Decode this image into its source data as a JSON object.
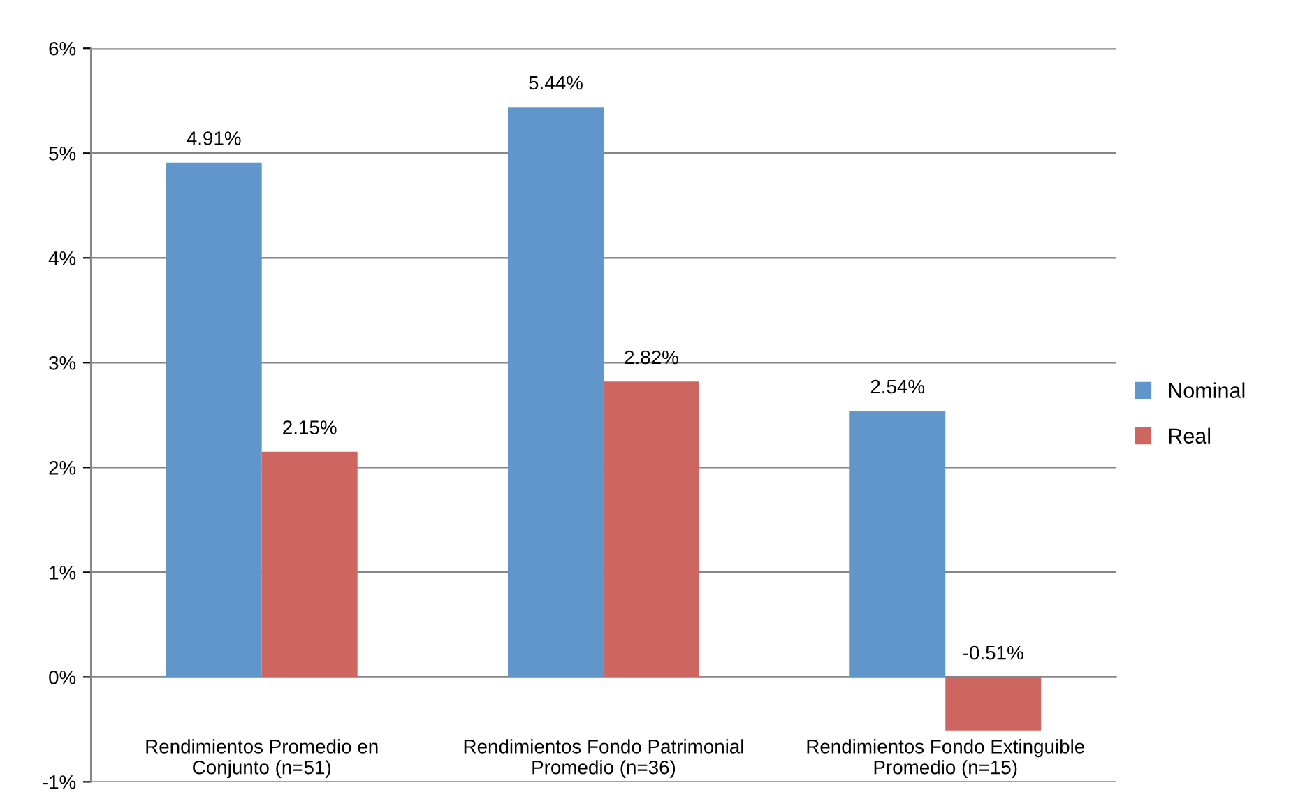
{
  "chart_data": {
    "type": "bar",
    "categories": [
      "Rendimientos Promedio en\nConjunto (n=51)",
      "Rendimientos Fondo Patrimonial\nPromedio (n=36)",
      "Rendimientos Fondo Extinguible\nPromedio (n=15)"
    ],
    "series": [
      {
        "name": "Nominal",
        "color": "#6096c9",
        "values": [
          4.91,
          5.44,
          2.54
        ],
        "value_labels": [
          "4.91%",
          "5.44%",
          "2.54%"
        ]
      },
      {
        "name": "Real",
        "color": "#cd6660",
        "values": [
          2.15,
          2.82,
          -0.51
        ],
        "value_labels": [
          "2.15%",
          "2.82%",
          "-0.51%"
        ]
      }
    ],
    "ylim": [
      -1,
      6
    ],
    "yticks": [
      {
        "value": -1,
        "label": "-1%"
      },
      {
        "value": 0,
        "label": "0%"
      },
      {
        "value": 1,
        "label": "1%"
      },
      {
        "value": 2,
        "label": "2%"
      },
      {
        "value": 3,
        "label": "3%"
      },
      {
        "value": 4,
        "label": "4%"
      },
      {
        "value": 5,
        "label": "5%"
      },
      {
        "value": 6,
        "label": "6%"
      }
    ],
    "grid": "y",
    "legend": "right"
  }
}
